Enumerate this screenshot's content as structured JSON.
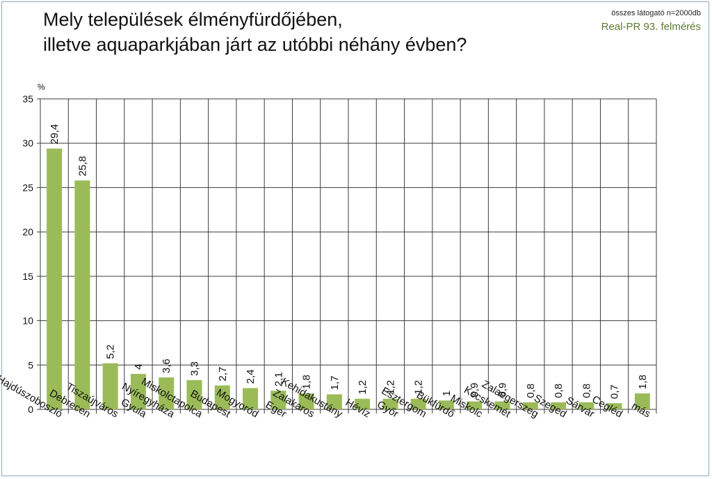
{
  "title": {
    "line1": "Mely települések élményfürdőjében,",
    "line2": "illetve aquaparkjában járt az utóbbi néhány évben?"
  },
  "source": {
    "note": "összes látogató n=2000db",
    "name": "Real-PR 93. felmérés"
  },
  "colors": {
    "bar": "#9bbb59",
    "grid": "#3a3a3a",
    "source_text": "#5e7a2e"
  },
  "chart_data": {
    "type": "bar",
    "ylabel": "%",
    "ylim": [
      0,
      35
    ],
    "yticks": [
      0,
      5,
      10,
      15,
      20,
      25,
      30,
      35
    ],
    "grid": true,
    "categories": [
      "Hajdúszoboszló",
      "Debrecen",
      "Tiszaújváros",
      "Gyula",
      "Nyíregyháza",
      "Miskolctapolca",
      "Budapest",
      "Mogyoród",
      "Eger",
      "Zalakaros",
      "Kehidakustány",
      "Hévíz",
      "Győr",
      "Esztergom",
      "Bükfürdő",
      "Miskolc",
      "Kecskemét",
      "Zalaegerszeg",
      "Szeged",
      "Sárvár",
      "Cegléd",
      "más"
    ],
    "values": [
      29.4,
      25.8,
      5.2,
      4,
      3.6,
      3.3,
      2.7,
      2.4,
      2.1,
      1.8,
      1.7,
      1.2,
      1.2,
      1.2,
      1,
      0.9,
      0.9,
      0.8,
      0.8,
      0.8,
      0.7,
      1.8
    ],
    "labels": [
      "29,4",
      "25,8",
      "5,2",
      "4",
      "3,6",
      "3,3",
      "2,7",
      "2,4",
      "2,1",
      "1,8",
      "1,7",
      "1,2",
      "1,2",
      "1,2",
      "1",
      "0,9",
      "0,9",
      "0,8",
      "0,8",
      "0,8",
      "0,7",
      "1,8"
    ]
  }
}
